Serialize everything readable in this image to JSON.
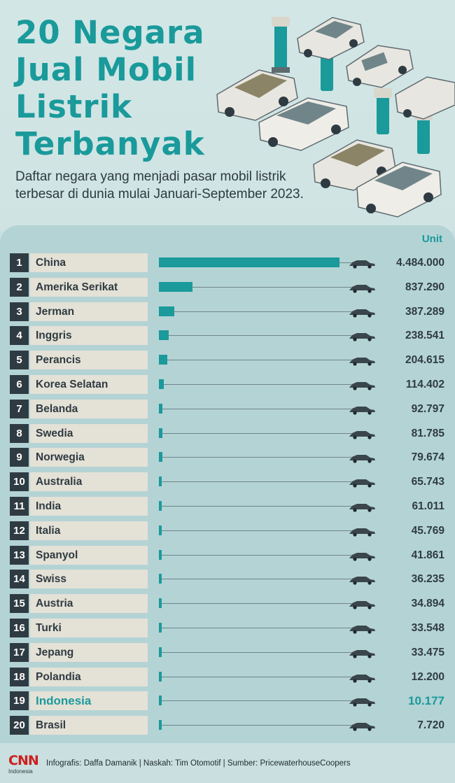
{
  "header": {
    "title_lines": [
      "20 Negara",
      "Jual Mobil",
      "Listrik",
      "Terbanyak"
    ],
    "subtitle": "Daftar negara yang menjadi pasar mobil listrik terbesar di dunia mulai Januari-September 2023."
  },
  "colors": {
    "accent": "#1a9a9a",
    "dark": "#2f3b42",
    "label_box": "#e4e1d6",
    "panel": "#b4d3d5",
    "brand_red": "#cc1f1f"
  },
  "chart_data": {
    "type": "bar",
    "orientation": "horizontal",
    "unit_label": "Unit",
    "highlight": "Indonesia",
    "rows": [
      {
        "rank": "1",
        "country": "China",
        "value": 4484000,
        "display": "4.484.000"
      },
      {
        "rank": "2",
        "country": "Amerika Serikat",
        "value": 837290,
        "display": "837.290"
      },
      {
        "rank": "3",
        "country": "Jerman",
        "value": 387289,
        "display": "387.289"
      },
      {
        "rank": "4",
        "country": "Inggris",
        "value": 238541,
        "display": "238.541"
      },
      {
        "rank": "5",
        "country": "Perancis",
        "value": 204615,
        "display": "204.615"
      },
      {
        "rank": "6",
        "country": "Korea Selatan",
        "value": 114402,
        "display": "114.402"
      },
      {
        "rank": "7",
        "country": "Belanda",
        "value": 92797,
        "display": "92.797"
      },
      {
        "rank": "8",
        "country": "Swedia",
        "value": 81785,
        "display": "81.785"
      },
      {
        "rank": "9",
        "country": "Norwegia",
        "value": 79674,
        "display": "79.674"
      },
      {
        "rank": "10",
        "country": "Australia",
        "value": 65743,
        "display": "65.743"
      },
      {
        "rank": "11",
        "country": "India",
        "value": 61011,
        "display": "61.011"
      },
      {
        "rank": "12",
        "country": "Italia",
        "value": 45769,
        "display": "45.769"
      },
      {
        "rank": "13",
        "country": "Spanyol",
        "value": 41861,
        "display": "41.861"
      },
      {
        "rank": "14",
        "country": "Swiss",
        "value": 36235,
        "display": "36.235"
      },
      {
        "rank": "15",
        "country": "Austria",
        "value": 34894,
        "display": "34.894"
      },
      {
        "rank": "16",
        "country": "Turki",
        "value": 33548,
        "display": "33.548"
      },
      {
        "rank": "17",
        "country": "Jepang",
        "value": 33475,
        "display": "33.475"
      },
      {
        "rank": "18",
        "country": "Polandia",
        "value": 12200,
        "display": "12.200"
      },
      {
        "rank": "19",
        "country": "Indonesia",
        "value": 10177,
        "display": "10.177"
      },
      {
        "rank": "20",
        "country": "Brasil",
        "value": 7720,
        "display": "7.720"
      }
    ]
  },
  "footer": {
    "logo_main": "CNN",
    "logo_sub": "Indonesia",
    "credits": "Infografis: Daffa Damanik | Naskah: Tim Otomotif | Sumber: PricewaterhouseCoopers"
  }
}
